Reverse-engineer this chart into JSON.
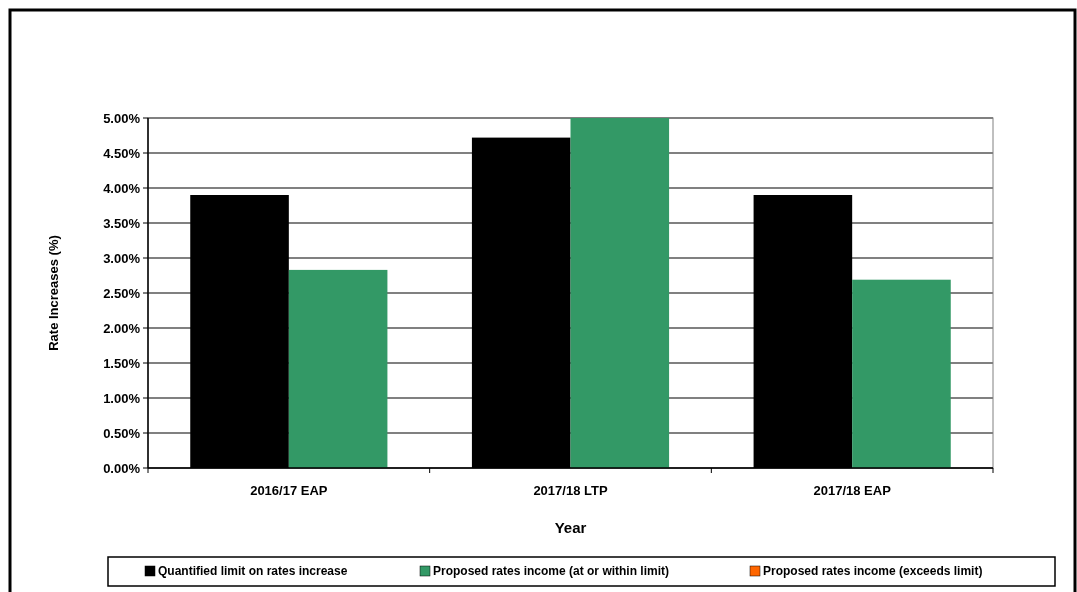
{
  "chart_data": {
    "type": "bar",
    "xlabel": "Year",
    "ylabel": "Rate Increases (%)",
    "categories": [
      "2016/17 EAP",
      "2017/18 LTP",
      "2017/18 EAP"
    ],
    "series": [
      {
        "name": "Quantified limit on rates increase",
        "color": "#000000",
        "values": [
          3.9,
          4.72,
          3.9
        ]
      },
      {
        "name": "Proposed rates income (at or within limit)",
        "color": "#339966",
        "values": [
          2.83,
          5.0,
          2.69
        ]
      },
      {
        "name": "Proposed rates income (exceeds limit)",
        "color": "#ff6600",
        "values": [
          null,
          null,
          null
        ]
      }
    ],
    "ylim": [
      0,
      5
    ],
    "yticks": [
      {
        "value": 0,
        "label": "0.00%"
      },
      {
        "value": 0.5,
        "label": "0.50%"
      },
      {
        "value": 1,
        "label": "1.00%"
      },
      {
        "value": 1.5,
        "label": "1.50%"
      },
      {
        "value": 2,
        "label": "2.00%"
      },
      {
        "value": 2.5,
        "label": "2.50%"
      },
      {
        "value": 3,
        "label": "3.00%"
      },
      {
        "value": 3.5,
        "label": "3.50%"
      },
      {
        "value": 4,
        "label": "4.00%"
      },
      {
        "value": 4.5,
        "label": "4.50%"
      },
      {
        "value": 5,
        "label": "5.00%"
      }
    ],
    "grid": "y",
    "legend": "bottom"
  }
}
